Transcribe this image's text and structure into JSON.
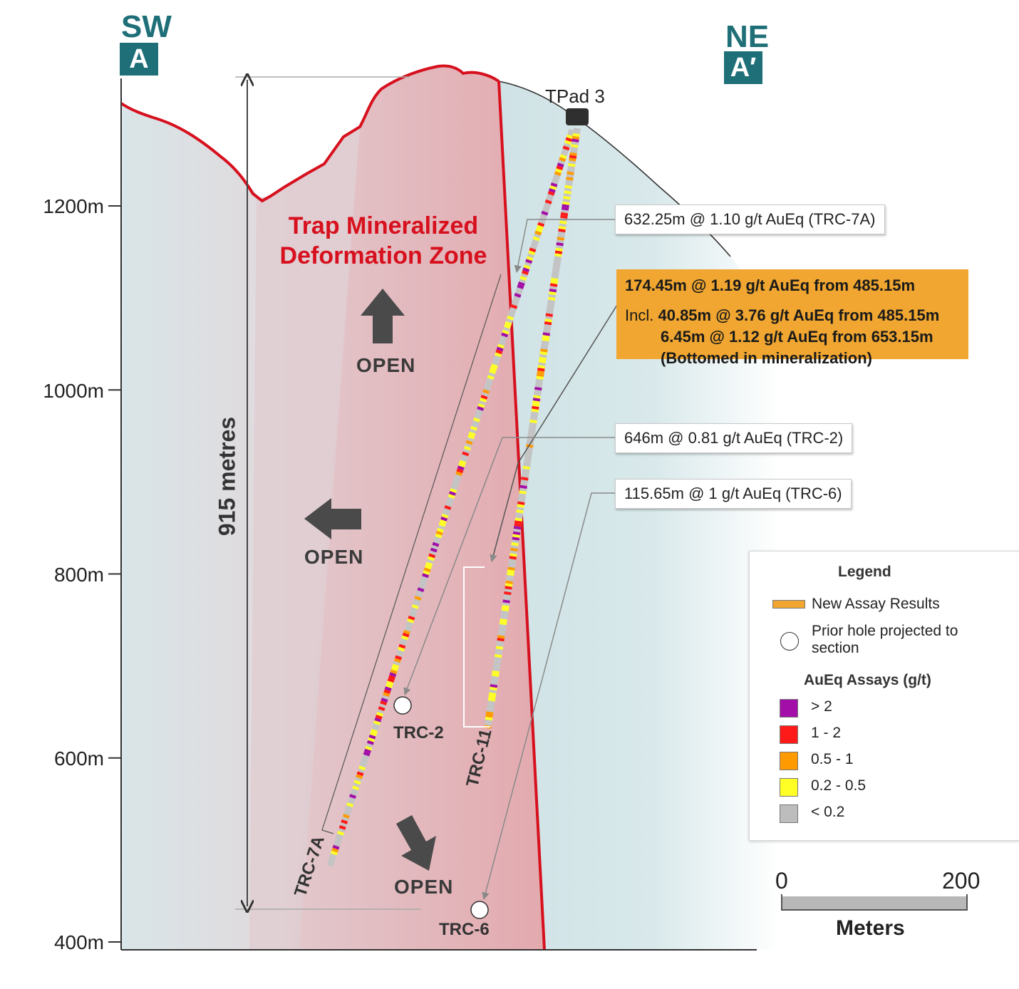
{
  "directions": {
    "left_label": "SW",
    "left_tag": "A",
    "right_label": "NE",
    "right_tag": "A′"
  },
  "pad_label": "TPad 3",
  "elevation_axis": {
    "ticks": [
      {
        "label": "1200m",
        "value": 1200
      },
      {
        "label": "1000m",
        "value": 1000
      },
      {
        "label": "800m",
        "value": 800
      },
      {
        "label": "600m",
        "value": 600
      },
      {
        "label": "400m",
        "value": 400
      }
    ]
  },
  "vertical_extent_label": "915 metres",
  "zone_label": {
    "line1": "Trap Mineralized",
    "line2": "Deformation Zone"
  },
  "open_labels": [
    "OPEN",
    "OPEN",
    "OPEN"
  ],
  "holes": {
    "trc7a": "TRC-7A",
    "trc11": "TRC-11",
    "trc2": "TRC-2",
    "trc6": "TRC-6"
  },
  "callouts": {
    "trc7a": "632.25m @ 1.10 g/t AuEq (TRC-7A)",
    "trc2": "646m @ 0.81 g/t AuEq (TRC-2)",
    "trc6": "115.65m @ 1 g/t AuEq (TRC-6)"
  },
  "highlight": {
    "line1": "174.45m @ 1.19 g/t AuEq from 485.15m",
    "incl_prefix": "Incl.",
    "line2": "40.85m @ 3.76 g/t AuEq from 485.15m",
    "line3": "6.45m @ 1.12 g/t AuEq from 653.15m",
    "line4": "(Bottomed in mineralization)"
  },
  "legend": {
    "title": "Legend",
    "new_assay": "New Assay Results",
    "prior_hole_line1": "Prior hole projected to",
    "prior_hole_line2": "section",
    "assay_title": "AuEq Assays (g/t)",
    "classes": [
      {
        "label": "> 2",
        "color": "#a40ea8"
      },
      {
        "label": "1 - 2",
        "color": "#ff1a1a"
      },
      {
        "label": "0.5 - 1",
        "color": "#ff9a00"
      },
      {
        "label": "0.2 - 0.5",
        "color": "#ffff26"
      },
      {
        "label": "< 0.2",
        "color": "#bdbdbd"
      }
    ],
    "new_assay_color": "#f0a630"
  },
  "scale_bar": {
    "start": "0",
    "end": "200",
    "unit": "Meters"
  },
  "colors": {
    "zone_red": "#d7101e",
    "teal": "#1f6f78",
    "callout_orange": "#f0a630"
  }
}
